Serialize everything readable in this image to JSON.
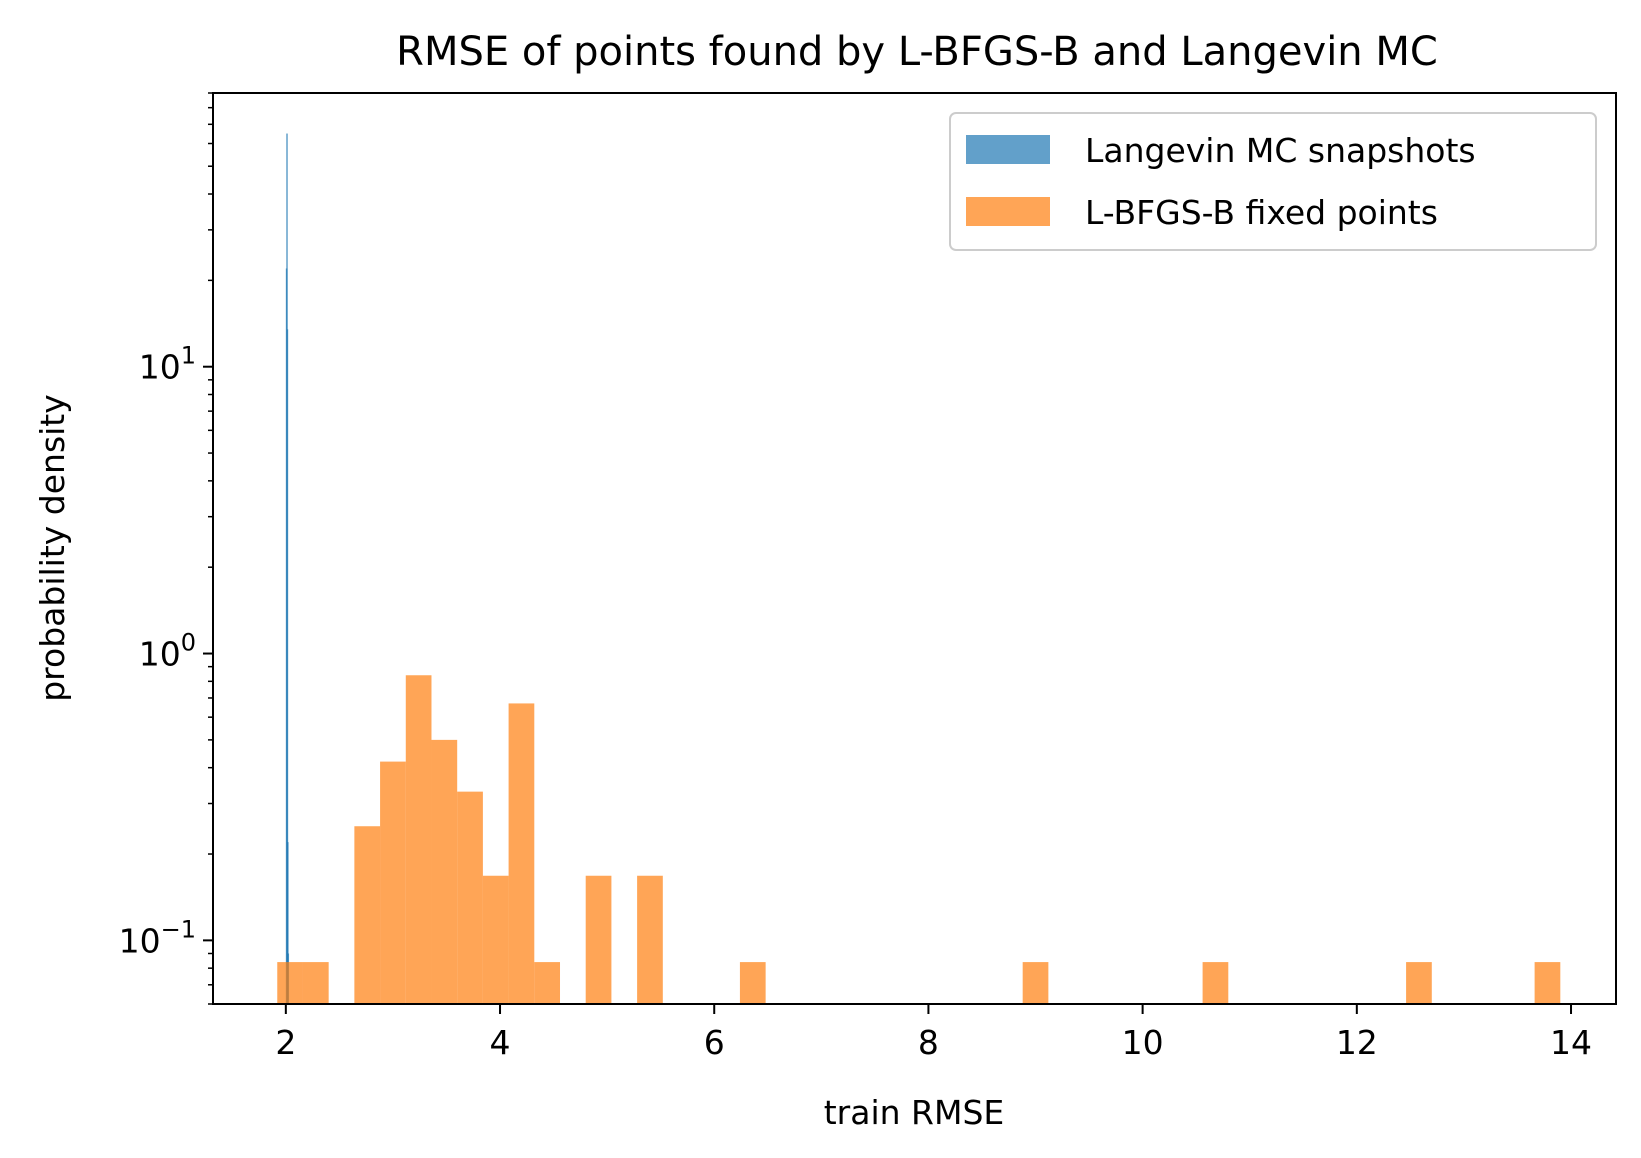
{
  "chart_data": {
    "type": "bar",
    "title": "RMSE of points found by L-BFGS-B and Langevin MC",
    "xlabel": "train RMSE",
    "ylabel": "probability density",
    "xlim": [
      1.32,
      14.42
    ],
    "ylim": [
      0.06,
      90
    ],
    "yscale": "log",
    "grid": false,
    "legend_position": "top-right",
    "xticks": [
      {
        "value": 2,
        "label": "2"
      },
      {
        "value": 4,
        "label": "4"
      },
      {
        "value": 6,
        "label": "6"
      },
      {
        "value": 8,
        "label": "8"
      },
      {
        "value": 10,
        "label": "10"
      },
      {
        "value": 12,
        "label": "12"
      },
      {
        "value": 14,
        "label": "14"
      }
    ],
    "yticks": [
      {
        "value": 0.1,
        "base": "10",
        "exp": "−1"
      },
      {
        "value": 1,
        "base": "10",
        "exp": "0"
      },
      {
        "value": 10,
        "base": "10",
        "exp": "1"
      }
    ],
    "series": [
      {
        "name": "Langevin MC snapshots",
        "color": "#1f77b4",
        "opacity": 0.7,
        "bins": [
          {
            "x0": 2.0,
            "x1": 2.004,
            "value": 22
          },
          {
            "x0": 2.004,
            "x1": 2.008,
            "value": 65
          },
          {
            "x0": 2.008,
            "x1": 2.012,
            "value": 13.5
          },
          {
            "x0": 2.012,
            "x1": 2.016,
            "value": 0.22
          },
          {
            "x0": 2.016,
            "x1": 2.02,
            "value": 0.09
          }
        ]
      },
      {
        "name": "L-BFGS-B fixed points",
        "color": "#ff7f0e",
        "opacity": 0.7,
        "bins": [
          {
            "x0": 1.92,
            "x1": 2.16,
            "value": 0.084
          },
          {
            "x0": 2.16,
            "x1": 2.4,
            "value": 0.084
          },
          {
            "x0": 2.64,
            "x1": 2.88,
            "value": 0.25
          },
          {
            "x0": 2.88,
            "x1": 3.12,
            "value": 0.42
          },
          {
            "x0": 3.12,
            "x1": 3.36,
            "value": 0.84
          },
          {
            "x0": 3.36,
            "x1": 3.6,
            "value": 0.5
          },
          {
            "x0": 3.6,
            "x1": 3.84,
            "value": 0.33
          },
          {
            "x0": 3.84,
            "x1": 4.08,
            "value": 0.168
          },
          {
            "x0": 4.08,
            "x1": 4.32,
            "value": 0.67
          },
          {
            "x0": 4.32,
            "x1": 4.56,
            "value": 0.084
          },
          {
            "x0": 4.8,
            "x1": 5.04,
            "value": 0.168
          },
          {
            "x0": 5.28,
            "x1": 5.52,
            "value": 0.168
          },
          {
            "x0": 6.24,
            "x1": 6.48,
            "value": 0.084
          },
          {
            "x0": 8.88,
            "x1": 9.12,
            "value": 0.084
          },
          {
            "x0": 10.56,
            "x1": 10.8,
            "value": 0.084
          },
          {
            "x0": 12.46,
            "x1": 12.7,
            "value": 0.084
          },
          {
            "x0": 13.66,
            "x1": 13.9,
            "value": 0.084
          }
        ]
      }
    ]
  }
}
